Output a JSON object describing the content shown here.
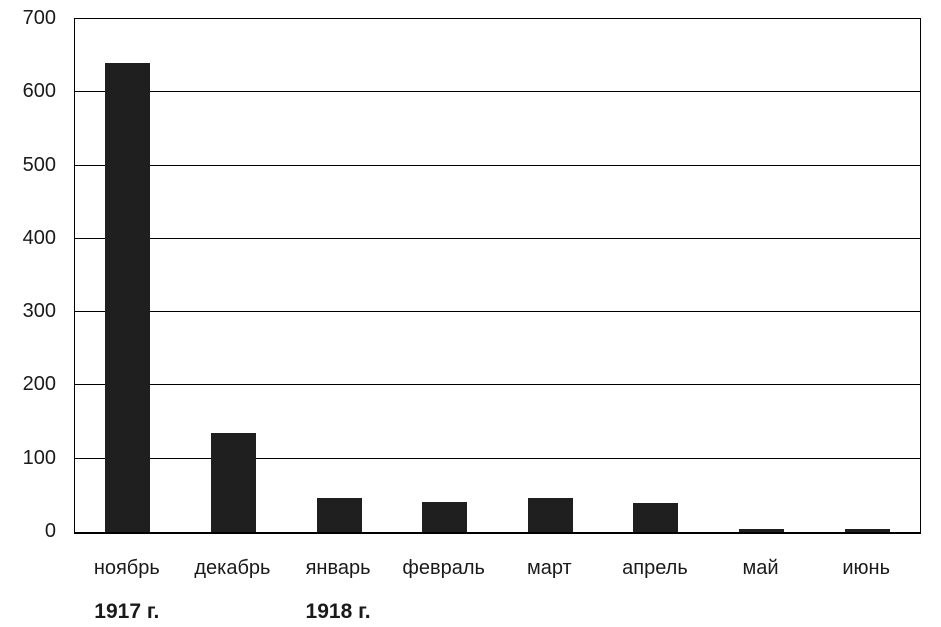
{
  "chart_data": {
    "type": "bar",
    "title": "",
    "xlabel": "",
    "ylabel": "",
    "categories": [
      "ноябрь",
      "декабрь",
      "январь",
      "февраль",
      "март",
      "апрель",
      "май",
      "июнь"
    ],
    "values": [
      640,
      135,
      46,
      41,
      47,
      39,
      4,
      4
    ],
    "ylim": [
      0,
      700
    ],
    "yticks": [
      0,
      100,
      200,
      300,
      400,
      500,
      600,
      700
    ],
    "grid": true,
    "legend": false,
    "bar_color": "#1f1f1f",
    "axis_color": "#000000",
    "text_color": "#1a1a1a",
    "year_annotations": [
      {
        "label": "1917 г.",
        "category_index": 0
      },
      {
        "label": "1918 г.",
        "category_index": 2
      }
    ]
  }
}
